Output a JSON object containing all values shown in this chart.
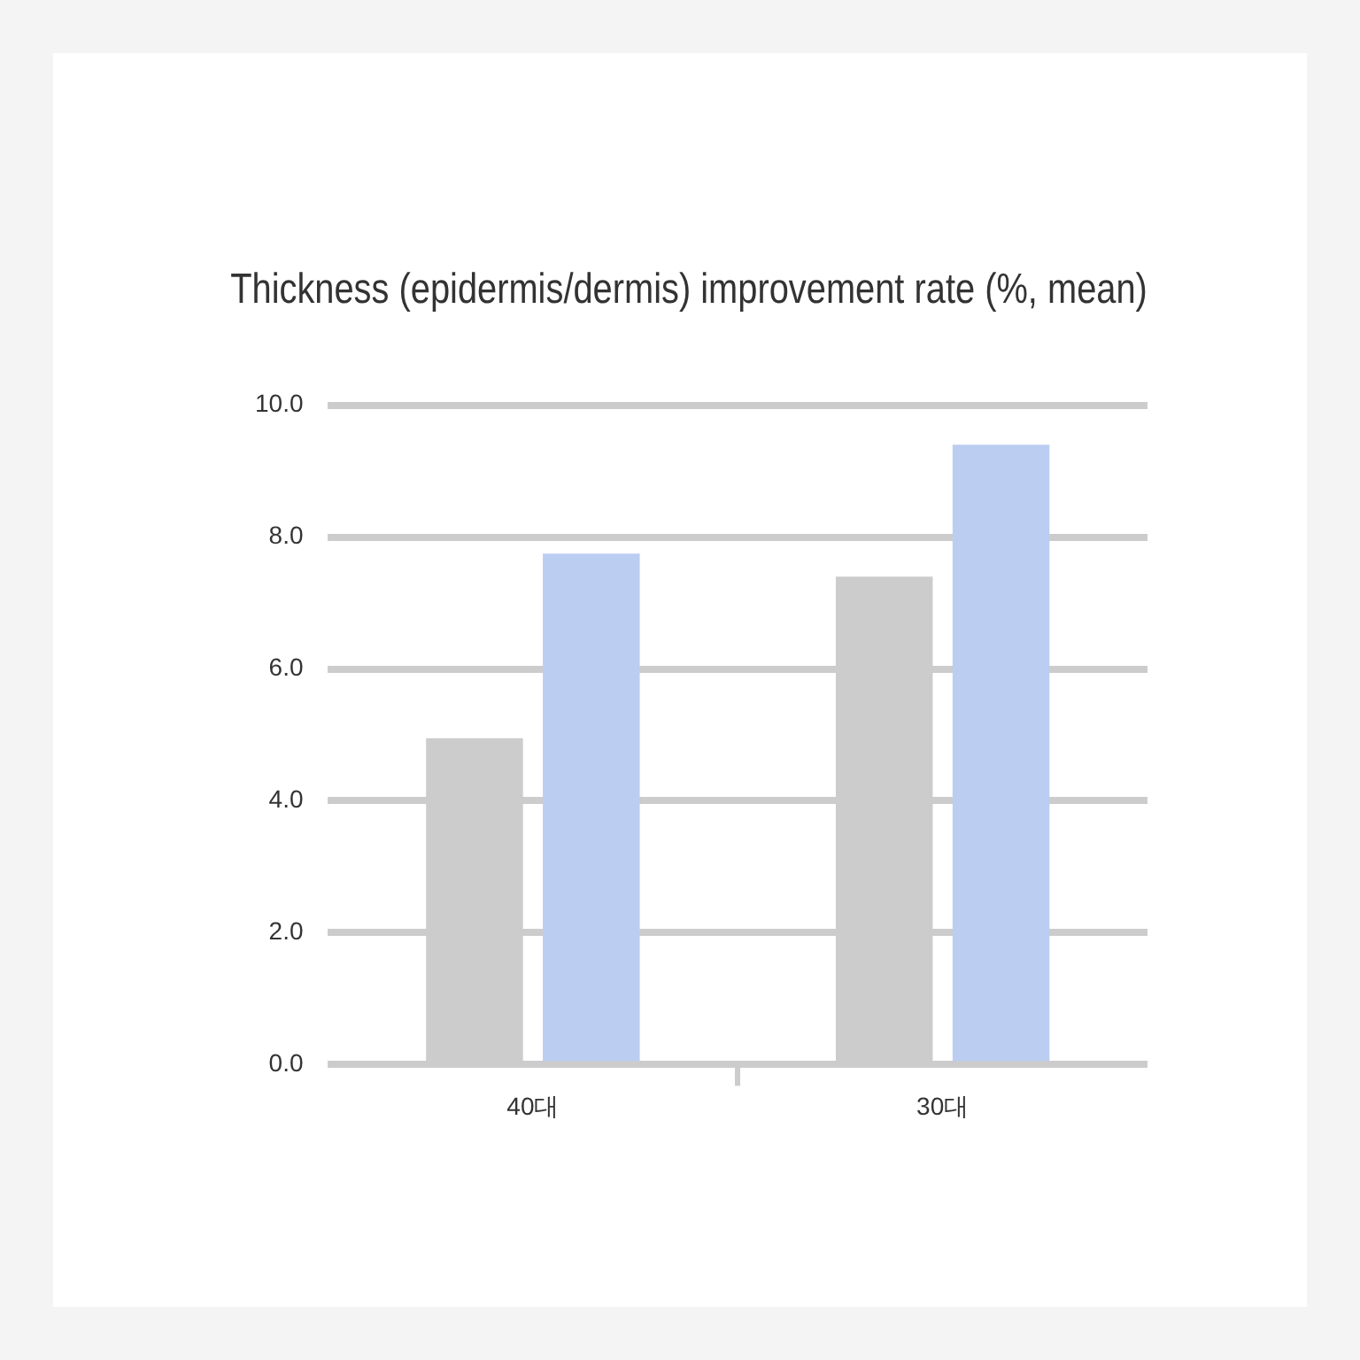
{
  "chart_data": {
    "type": "bar",
    "title": "Thickness (epidermis/dermis) improvement rate (%, mean)",
    "categories": [
      "40대",
      "30대"
    ],
    "series": [
      {
        "color": "#cccccc",
        "values": [
          4.95,
          7.4
        ]
      },
      {
        "color": "#bccdf2",
        "values": [
          7.75,
          9.4
        ]
      }
    ],
    "ylim": [
      0,
      10
    ],
    "yticks": [
      {
        "value": 0,
        "label": "0.0"
      },
      {
        "value": 2,
        "label": "2.0"
      },
      {
        "value": 4,
        "label": "4.0"
      },
      {
        "value": 6,
        "label": "6.0"
      },
      {
        "value": 8,
        "label": "8.0"
      },
      {
        "value": 10,
        "label": "10.0"
      }
    ],
    "grid": "y",
    "legend": false
  }
}
